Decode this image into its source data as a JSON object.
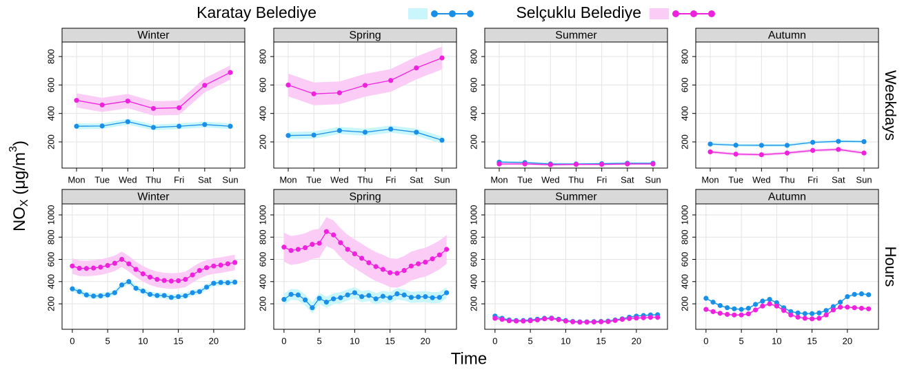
{
  "legend": [
    {
      "name": "Karatay Belediye",
      "color": "#1a8fe8",
      "band_color": "#c9f6fb"
    },
    {
      "name": "Selçuklu Belediye",
      "color": "#ee22dd",
      "band_color": "#fbcdf6"
    }
  ],
  "x_label": "Time",
  "y_label_parts": [
    "NO",
    "X",
    " (μg/m",
    "3",
    ")"
  ],
  "row_labels": [
    "Weekdays",
    "Hours"
  ],
  "chart_data": [
    {
      "type": "line",
      "title": "Winter",
      "categories": [
        "Mon",
        "Tue",
        "Wed",
        "Thu",
        "Fri",
        "Sat",
        "Sun"
      ],
      "ylim": [
        16,
        902
      ],
      "yticks": [
        200,
        400,
        600,
        800
      ],
      "grid": true,
      "series": [
        {
          "values": [
            310,
            312,
            342,
            302,
            310,
            322,
            310
          ],
          "ci": 20
        },
        {
          "values": [
            492,
            460,
            487,
            435,
            440,
            598,
            688
          ],
          "ci": 50
        }
      ]
    },
    {
      "type": "line",
      "title": "Spring",
      "categories": [
        "Mon",
        "Tue",
        "Wed",
        "Thu",
        "Fri",
        "Sat",
        "Sun"
      ],
      "ylim": [
        16,
        902
      ],
      "yticks": [
        200,
        400,
        600,
        800
      ],
      "grid": true,
      "series": [
        {
          "values": [
            245,
            248,
            280,
            268,
            290,
            268,
            212
          ],
          "ci": 25
        },
        {
          "values": [
            600,
            538,
            545,
            598,
            632,
            720,
            790
          ],
          "ci": 80
        }
      ]
    },
    {
      "type": "line",
      "title": "Summer",
      "categories": [
        "Mon",
        "Tue",
        "Wed",
        "Thu",
        "Fri",
        "Sat",
        "Sun"
      ],
      "ylim": [
        16,
        902
      ],
      "yticks": [
        200,
        400,
        600,
        800
      ],
      "grid": true,
      "series": [
        {
          "values": [
            58,
            55,
            45,
            45,
            47,
            50,
            50
          ],
          "ci": 8
        },
        {
          "values": [
            45,
            45,
            40,
            42,
            42,
            45,
            45
          ],
          "ci": 8
        }
      ]
    },
    {
      "type": "line",
      "title": "Autumn",
      "categories": [
        "Mon",
        "Tue",
        "Wed",
        "Thu",
        "Fri",
        "Sat",
        "Sun"
      ],
      "ylim": [
        16,
        902
      ],
      "yticks": [
        200,
        400,
        600,
        800
      ],
      "grid": true,
      "series": [
        {
          "values": [
            185,
            177,
            176,
            176,
            197,
            204,
            202
          ],
          "ci": 10
        },
        {
          "values": [
            130,
            114,
            110,
            122,
            140,
            147,
            122
          ],
          "ci": 10
        }
      ]
    },
    {
      "type": "line",
      "title": "Winter",
      "x": [
        0,
        1,
        2,
        3,
        4,
        5,
        6,
        7,
        8,
        9,
        10,
        11,
        12,
        13,
        14,
        15,
        16,
        17,
        18,
        19,
        20,
        21,
        22,
        23
      ],
      "xlim": [
        -1.45,
        24.4
      ],
      "xticks": [
        0,
        5,
        10,
        15,
        20
      ],
      "ylim": [
        -29,
        1099
      ],
      "yticks": [
        200,
        400,
        600,
        800,
        1000
      ],
      "grid": true,
      "series": [
        {
          "values": [
            335,
            310,
            280,
            270,
            272,
            280,
            300,
            370,
            400,
            340,
            315,
            285,
            275,
            275,
            258,
            265,
            272,
            300,
            310,
            350,
            385,
            392,
            390,
            395
          ],
          "ci": 25
        },
        {
          "values": [
            540,
            520,
            518,
            522,
            530,
            545,
            565,
            600,
            560,
            510,
            470,
            440,
            420,
            410,
            405,
            408,
            420,
            460,
            500,
            525,
            540,
            548,
            560,
            572
          ],
          "ci": 70
        }
      ]
    },
    {
      "type": "line",
      "title": "Spring",
      "x": [
        0,
        1,
        2,
        3,
        4,
        5,
        6,
        7,
        8,
        9,
        10,
        11,
        12,
        13,
        14,
        15,
        16,
        17,
        18,
        19,
        20,
        21,
        22,
        23
      ],
      "xlim": [
        -1.45,
        24.4
      ],
      "xticks": [
        0,
        5,
        10,
        15,
        20
      ],
      "ylim": [
        -29,
        1099
      ],
      "yticks": [
        200,
        400,
        600,
        800,
        1000
      ],
      "grid": true,
      "series": [
        {
          "values": [
            240,
            285,
            280,
            235,
            165,
            250,
            215,
            245,
            255,
            280,
            300,
            265,
            275,
            245,
            268,
            255,
            290,
            280,
            258,
            262,
            265,
            255,
            258,
            300
          ],
          "ci": 50
        },
        {
          "values": [
            710,
            680,
            690,
            705,
            735,
            745,
            850,
            820,
            750,
            690,
            650,
            610,
            570,
            535,
            510,
            480,
            475,
            500,
            540,
            560,
            575,
            605,
            640,
            690
          ],
          "ci": 130
        }
      ]
    },
    {
      "type": "line",
      "title": "Summer",
      "x": [
        0,
        1,
        2,
        3,
        4,
        5,
        6,
        7,
        8,
        9,
        10,
        11,
        12,
        13,
        14,
        15,
        16,
        17,
        18,
        19,
        20,
        21,
        22,
        23
      ],
      "xlim": [
        -1.45,
        24.4
      ],
      "xticks": [
        0,
        5,
        10,
        15,
        20
      ],
      "ylim": [
        -29,
        1099
      ],
      "yticks": [
        200,
        400,
        600,
        800,
        1000
      ],
      "grid": true,
      "series": [
        {
          "values": [
            90,
            70,
            55,
            50,
            50,
            55,
            62,
            70,
            72,
            62,
            50,
            42,
            38,
            38,
            40,
            42,
            45,
            55,
            65,
            80,
            90,
            95,
            100,
            102
          ],
          "ci": 10
        },
        {
          "values": [
            70,
            60,
            48,
            45,
            45,
            48,
            55,
            65,
            68,
            58,
            45,
            38,
            35,
            35,
            36,
            38,
            40,
            50,
            60,
            68,
            72,
            75,
            78,
            78
          ],
          "ci": 10
        }
      ]
    },
    {
      "type": "line",
      "title": "Autumn",
      "x": [
        0,
        1,
        2,
        3,
        4,
        5,
        6,
        7,
        8,
        9,
        10,
        11,
        12,
        13,
        14,
        15,
        16,
        17,
        18,
        19,
        20,
        21,
        22,
        23
      ],
      "xlim": [
        -1.45,
        24.4
      ],
      "xticks": [
        0,
        5,
        10,
        15,
        20
      ],
      "ylim": [
        -29,
        1099
      ],
      "yticks": [
        200,
        400,
        600,
        800,
        1000
      ],
      "grid": true,
      "series": [
        {
          "values": [
            250,
            215,
            185,
            165,
            155,
            150,
            160,
            195,
            225,
            240,
            210,
            165,
            130,
            118,
            112,
            112,
            118,
            140,
            175,
            215,
            265,
            285,
            290,
            282
          ],
          "ci": 10
        },
        {
          "values": [
            150,
            130,
            115,
            105,
            100,
            100,
            110,
            145,
            180,
            200,
            180,
            140,
            100,
            80,
            70,
            65,
            70,
            100,
            145,
            170,
            170,
            165,
            160,
            155
          ],
          "ci": 10
        }
      ]
    }
  ]
}
